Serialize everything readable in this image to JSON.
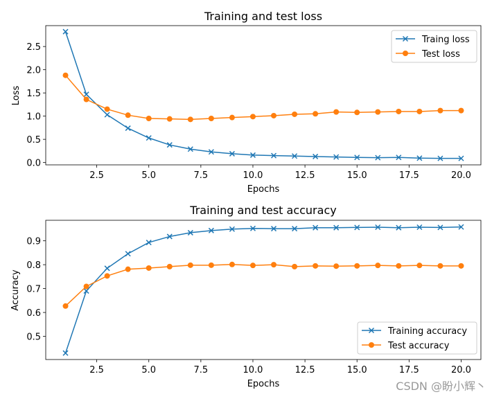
{
  "colors": {
    "training": "#1f77b4",
    "test": "#ff7f0e"
  },
  "watermark": "CSDN @盼小辉丶",
  "chart_data": [
    {
      "type": "line",
      "title": "Training and test loss",
      "xlabel": "Epochs",
      "ylabel": "Loss",
      "xlim": [
        0.05,
        20.95
      ],
      "ylim": [
        -0.05,
        2.95
      ],
      "xticks": [
        2.5,
        5.0,
        7.5,
        10.0,
        12.5,
        15.0,
        17.5,
        20.0
      ],
      "xtick_labels": [
        "2.5",
        "5.0",
        "7.5",
        "10.0",
        "12.5",
        "15.0",
        "17.5",
        "20.0"
      ],
      "yticks": [
        0.0,
        0.5,
        1.0,
        1.5,
        2.0,
        2.5
      ],
      "ytick_labels": [
        "0.0",
        "0.5",
        "1.0",
        "1.5",
        "2.0",
        "2.5"
      ],
      "legend_position": "top-right",
      "x": [
        1,
        2,
        3,
        4,
        5,
        6,
        7,
        8,
        9,
        10,
        11,
        12,
        13,
        14,
        15,
        16,
        17,
        18,
        19,
        20
      ],
      "series": [
        {
          "name": "Traing loss",
          "color": "training",
          "marker": "x",
          "values": [
            2.82,
            1.47,
            1.03,
            0.74,
            0.53,
            0.38,
            0.29,
            0.23,
            0.19,
            0.16,
            0.15,
            0.14,
            0.13,
            0.12,
            0.11,
            0.105,
            0.11,
            0.095,
            0.09,
            0.09
          ]
        },
        {
          "name": "Test loss",
          "color": "test",
          "marker": "o",
          "values": [
            1.88,
            1.36,
            1.15,
            1.02,
            0.95,
            0.94,
            0.93,
            0.95,
            0.97,
            0.99,
            1.01,
            1.04,
            1.05,
            1.09,
            1.08,
            1.09,
            1.1,
            1.1,
            1.12,
            1.12
          ]
        }
      ]
    },
    {
      "type": "line",
      "title": "Training and test accuracy",
      "xlabel": "Epochs",
      "ylabel": "Accuracy",
      "xlim": [
        0.05,
        20.95
      ],
      "ylim": [
        0.403,
        0.986
      ],
      "xticks": [
        2.5,
        5.0,
        7.5,
        10.0,
        12.5,
        15.0,
        17.5,
        20.0
      ],
      "xtick_labels": [
        "2.5",
        "5.0",
        "7.5",
        "10.0",
        "12.5",
        "15.0",
        "17.5",
        "20.0"
      ],
      "yticks": [
        0.5,
        0.6,
        0.7,
        0.8,
        0.9
      ],
      "ytick_labels": [
        "0.5",
        "0.6",
        "0.7",
        "0.8",
        "0.9"
      ],
      "legend_position": "bottom-right",
      "x": [
        1,
        2,
        3,
        4,
        5,
        6,
        7,
        8,
        9,
        10,
        11,
        12,
        13,
        14,
        15,
        16,
        17,
        18,
        19,
        20
      ],
      "series": [
        {
          "name": "Training accuracy",
          "color": "training",
          "marker": "x",
          "values": [
            0.43,
            0.69,
            0.785,
            0.846,
            0.893,
            0.918,
            0.934,
            0.943,
            0.949,
            0.952,
            0.951,
            0.951,
            0.955,
            0.955,
            0.956,
            0.957,
            0.955,
            0.957,
            0.956,
            0.958
          ]
        },
        {
          "name": "Test accuracy",
          "color": "test",
          "marker": "o",
          "values": [
            0.627,
            0.709,
            0.753,
            0.781,
            0.786,
            0.792,
            0.798,
            0.798,
            0.801,
            0.797,
            0.8,
            0.792,
            0.795,
            0.794,
            0.795,
            0.797,
            0.795,
            0.797,
            0.795,
            0.795
          ]
        }
      ]
    }
  ]
}
